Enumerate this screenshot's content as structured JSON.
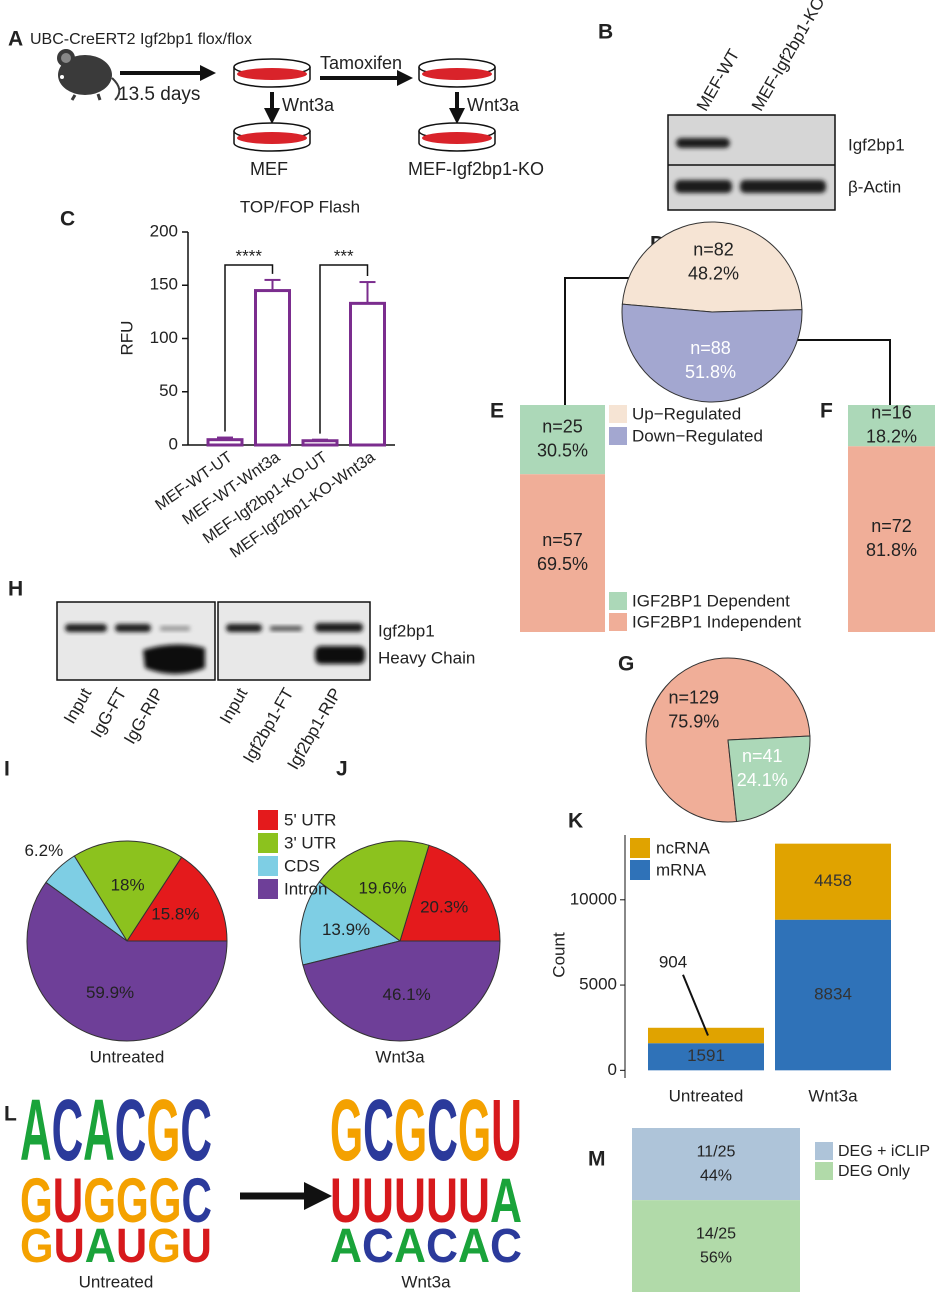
{
  "panel_a": {
    "label": "A",
    "strain": "UBC-CreERT2 Igf2bp1 flox/flox",
    "duration": "13.5 days",
    "drug": "Tamoxifen",
    "treat_left": "Wnt3a",
    "treat_right": "Wnt3a",
    "dish_left": "MEF",
    "dish_right": "MEF-Igf2bp1-KO"
  },
  "panel_b": {
    "label": "B",
    "lanes": [
      "MEF-WT",
      "MEF-Igf2bp1-KO"
    ],
    "bands": [
      "Igf2bp1",
      "β-Actin"
    ]
  },
  "panel_c": {
    "label": "C",
    "type": "bar",
    "title": "TOP/FOP Flash",
    "y_label": "RFU",
    "categories": [
      "MEF-WT-UT",
      "MEF-WT-Wnt3a",
      "MEF-Igf2bp1-KO-UT",
      "MEF-Igf2bp1-KO-Wnt3a"
    ],
    "values": [
      5,
      145,
      4,
      133
    ],
    "errors": [
      2,
      10,
      1,
      20
    ],
    "color": "#7b2d8e",
    "ylim": [
      0,
      200
    ],
    "yticks": [
      0,
      50,
      100,
      150,
      200
    ],
    "significance": [
      "****",
      "***"
    ]
  },
  "panel_d": {
    "label": "D",
    "type": "pie",
    "categories": [
      "Up−Regulated",
      "Down−Regulated"
    ],
    "values": [
      48.2,
      51.8
    ],
    "value_labels": [
      "48.2%",
      "51.8%"
    ],
    "counts": [
      82,
      88
    ],
    "count_labels": [
      "n=82",
      "n=88"
    ],
    "colors": [
      "#f6e4d4",
      "#a3a7d0"
    ]
  },
  "panel_e": {
    "label": "E",
    "type": "stacked_bar",
    "categories": [
      "IGF2BP1 Dependent",
      "IGF2BP1 Independent"
    ],
    "values": [
      30.5,
      69.5
    ],
    "value_labels": [
      "30.5%",
      "69.5%"
    ],
    "counts": [
      25,
      57
    ],
    "count_labels": [
      "n=25",
      "n=57"
    ],
    "colors": [
      "#acd8b8",
      "#f0ae98"
    ]
  },
  "panel_f": {
    "label": "F",
    "type": "stacked_bar",
    "values": [
      18.2,
      81.8
    ],
    "value_labels": [
      "18.2%",
      "81.8%"
    ],
    "counts": [
      16,
      72
    ],
    "count_labels": [
      "n=16",
      "n=72"
    ],
    "colors": [
      "#acd8b8",
      "#f0ae98"
    ]
  },
  "panel_g": {
    "label": "G",
    "type": "pie",
    "values": [
      75.9,
      24.1
    ],
    "value_labels": [
      "75.9%",
      "24.1%"
    ],
    "counts": [
      129,
      41
    ],
    "count_labels": [
      "n=129",
      "n=41"
    ],
    "colors": [
      "#f0ae98",
      "#acd8b8"
    ]
  },
  "panel_h": {
    "label": "H",
    "lanes": [
      "Input",
      "IgG-FT",
      "IgG-RIP",
      "Input",
      "Igf2bp1-FT",
      "Igf2bp1-RIP"
    ],
    "bands": [
      "Igf2bp1",
      "Heavy Chain"
    ]
  },
  "panel_i": {
    "label": "I",
    "type": "pie",
    "caption": "Untreated",
    "categories": [
      "5' UTR",
      "3' UTR",
      "CDS",
      "Intron"
    ],
    "values": [
      15.8,
      18,
      6.2,
      59.9
    ],
    "value_labels": [
      "15.8%",
      "18%",
      "6.2%",
      "59.9%"
    ],
    "colors": [
      "#e41a1c",
      "#8cc21e",
      "#7ecee4",
      "#6e3f98"
    ]
  },
  "panel_j": {
    "label": "J",
    "type": "pie",
    "caption": "Wnt3a",
    "values": [
      20.3,
      19.6,
      13.9,
      46.1
    ],
    "value_labels": [
      "20.3%",
      "19.6%",
      "13.9%",
      "46.1%"
    ],
    "colors": [
      "#e41a1c",
      "#8cc21e",
      "#7ecee4",
      "#6e3f98"
    ]
  },
  "panel_k": {
    "label": "K",
    "type": "stacked_bar",
    "y_label": "Count",
    "categories": [
      "Untreated",
      "Wnt3a"
    ],
    "series": [
      {
        "name": "mRNA",
        "color": "#2f72b8",
        "values": [
          1591,
          8834
        ]
      },
      {
        "name": "ncRNA",
        "color": "#e0a300",
        "values": [
          904,
          4458
        ]
      }
    ],
    "ylim": [
      -450,
      13800
    ],
    "yticks": [
      0,
      5000,
      10000
    ]
  },
  "panel_l": {
    "label": "L",
    "logos": [
      {
        "caption": "Untreated",
        "motifs": [
          "ACACGC",
          "GUGGGC",
          "GUAUGU"
        ]
      },
      {
        "caption": "Wnt3a",
        "motifs": [
          "GCGCGU",
          "UUUUUA",
          "ACACAC"
        ]
      }
    ]
  },
  "panel_m": {
    "label": "M",
    "type": "stacked_bar",
    "categories": [
      "DEG + iCLIP",
      "DEG Only"
    ],
    "fractions": [
      "11/25",
      "14/25"
    ],
    "values": [
      44,
      56
    ],
    "value_labels": [
      "44%",
      "56%"
    ],
    "colors": [
      "#aec4d9",
      "#b1daa9"
    ]
  }
}
